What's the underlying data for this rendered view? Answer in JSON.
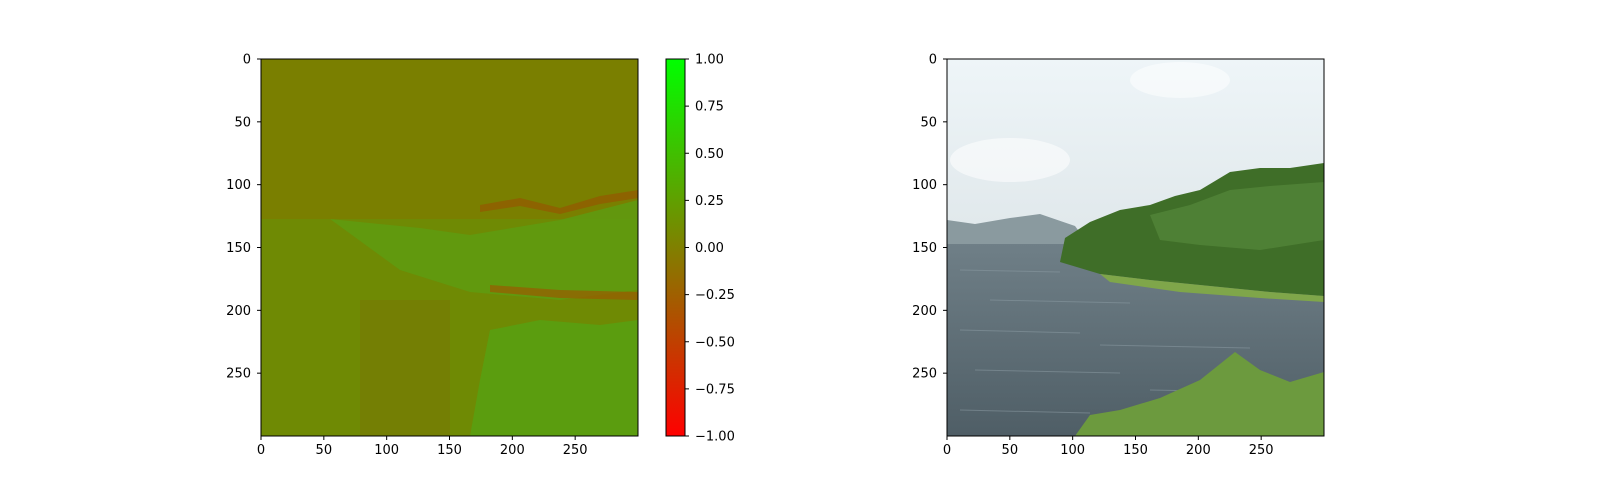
{
  "chart_data": [
    {
      "type": "heatmap",
      "title": "",
      "xlabel": "",
      "ylabel": "",
      "xlim": [
        0,
        300
      ],
      "ylim": [
        300,
        0
      ],
      "x_ticks": [
        0,
        50,
        100,
        150,
        200,
        250
      ],
      "y_ticks": [
        0,
        50,
        100,
        150,
        200,
        250
      ],
      "colorbar": {
        "range": [
          -1.0,
          1.0
        ],
        "colormap": [
          "#ff0000",
          "#808000",
          "#00ff00"
        ],
        "tick_values": [
          -1.0,
          -0.75,
          -0.5,
          -0.25,
          0.0,
          0.25,
          0.5,
          0.75,
          1.0
        ],
        "tick_labels": [
          "−1.00",
          "−0.75",
          "−0.50",
          "−0.25",
          "0.00",
          "0.25",
          "0.50",
          "0.75",
          "1.00"
        ]
      },
      "regions": [
        {
          "name": "sky",
          "approx_value": -0.03
        },
        {
          "name": "water",
          "approx_value": 0.12
        },
        {
          "name": "vegetation",
          "approx_value": 0.3
        }
      ]
    },
    {
      "type": "image",
      "title": "",
      "xlabel": "",
      "ylabel": "",
      "xlim": [
        0,
        300
      ],
      "ylim": [
        300,
        0
      ],
      "x_ticks": [
        0,
        50,
        100,
        150,
        200,
        250
      ],
      "y_ticks": [
        0,
        50,
        100,
        150,
        200,
        250
      ],
      "scene": "lake with forested peninsula, distant hills and cloudy sky",
      "colors": {
        "sky": "#e6eef2",
        "hills": "#8a9aa0",
        "water": "#5f7078",
        "forest": "#3c6a26",
        "foreground_plants": "#6f9a42"
      }
    }
  ]
}
